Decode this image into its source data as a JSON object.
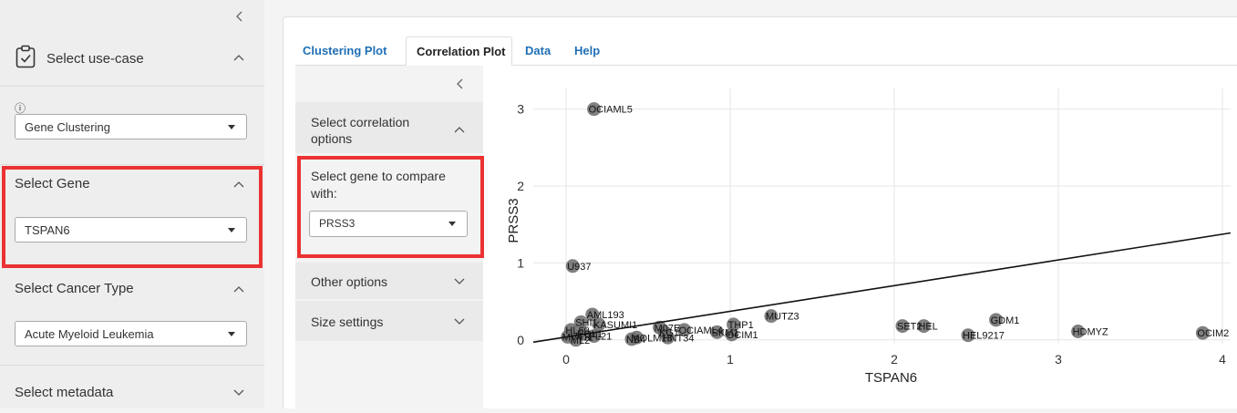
{
  "sidebar": {
    "use_case": {
      "title": "Select use-case",
      "info_icon": "ⓘ",
      "value": "Gene Clustering"
    },
    "gene": {
      "title": "Select Gene",
      "value": "TSPAN6"
    },
    "cancer": {
      "title": "Select Cancer Type",
      "value": "Acute Myeloid Leukemia"
    },
    "metadata": {
      "title": "Select metadata"
    }
  },
  "tabs": [
    "Clustering Plot",
    "Correlation Plot",
    "Data",
    "Help"
  ],
  "active_tab": "Correlation Plot",
  "options": {
    "correlation_title": "Select correlation options",
    "compare_label": "Select gene to compare with:",
    "compare_value": "PRSS3",
    "other_title": "Other options",
    "size_title": "Size settings"
  },
  "chart_data": {
    "type": "scatter",
    "title": "",
    "xlabel": "TSPAN6",
    "ylabel": "PRSS3",
    "xlim": [
      -0.2,
      4.05
    ],
    "ylim": [
      -0.05,
      3.15
    ],
    "xticks": [
      0,
      1,
      2,
      3,
      4
    ],
    "yticks": [
      0,
      1,
      2,
      3
    ],
    "grid": true,
    "point_color": "#6a6a6a",
    "trend_line": {
      "x": [
        -0.2,
        4.05
      ],
      "y": [
        -0.03,
        1.39
      ]
    },
    "points": [
      {
        "label": "OCIAML5",
        "x": 0.17,
        "y": 3.0
      },
      {
        "label": "U937",
        "x": 0.04,
        "y": 0.96
      },
      {
        "label": "MUTZ3",
        "x": 1.25,
        "y": 0.31
      },
      {
        "label": "GDM1",
        "x": 2.62,
        "y": 0.26
      },
      {
        "label": "SET2",
        "x": 2.05,
        "y": 0.18
      },
      {
        "label": "HEL",
        "x": 2.18,
        "y": 0.18
      },
      {
        "label": "HEL9217",
        "x": 2.45,
        "y": 0.06
      },
      {
        "label": "HDMYZ",
        "x": 3.12,
        "y": 0.11
      },
      {
        "label": "OCIM2",
        "x": 3.88,
        "y": 0.09
      },
      {
        "label": "THP1",
        "x": 1.02,
        "y": 0.2
      },
      {
        "label": "SKM1",
        "x": 0.92,
        "y": 0.1
      },
      {
        "label": "OCIM1",
        "x": 1.01,
        "y": 0.07
      },
      {
        "label": "OCIAML4",
        "x": 0.72,
        "y": 0.13
      },
      {
        "label": "M07E",
        "x": 0.57,
        "y": 0.16
      },
      {
        "label": "KG1",
        "x": 0.6,
        "y": 0.1
      },
      {
        "label": "HNT34",
        "x": 0.62,
        "y": 0.03
      },
      {
        "label": "MOLM13",
        "x": 0.43,
        "y": 0.03
      },
      {
        "label": "NB4",
        "x": 0.4,
        "y": 0.01
      },
      {
        "label": "AML193",
        "x": 0.16,
        "y": 0.33
      },
      {
        "label": "SHI1",
        "x": 0.09,
        "y": 0.23
      },
      {
        "label": "KASUMI1",
        "x": 0.2,
        "y": 0.2
      },
      {
        "label": "HL60",
        "x": 0.03,
        "y": 0.13
      },
      {
        "label": "MV411",
        "x": 0.01,
        "y": 0.04
      },
      {
        "label": "EOL1",
        "x": 0.1,
        "y": 0.08
      },
      {
        "label": "PL21",
        "x": 0.17,
        "y": 0.05
      },
      {
        "label": "ML2",
        "x": 0.06,
        "y": 0.0
      }
    ]
  }
}
